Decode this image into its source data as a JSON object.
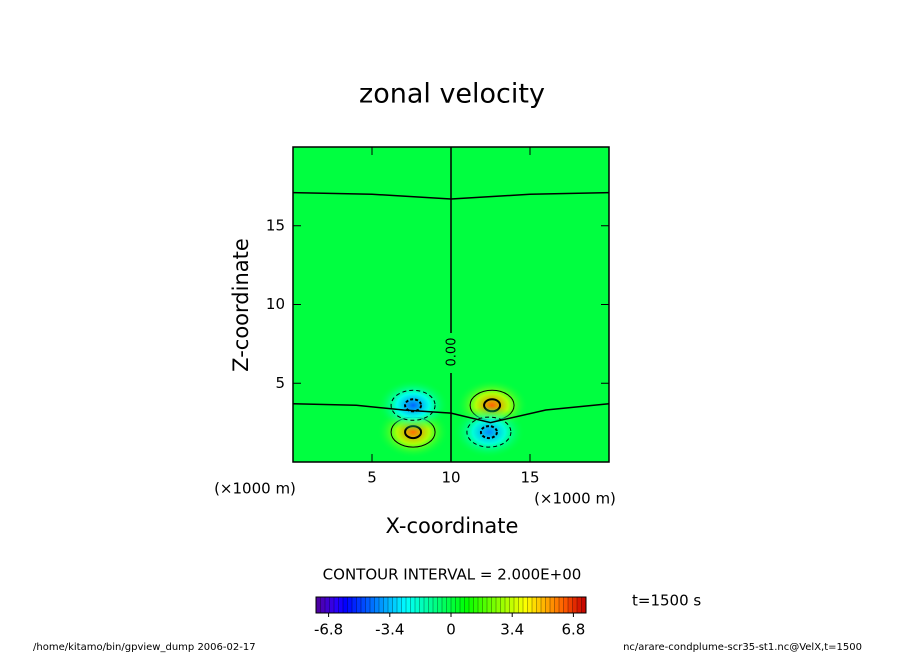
{
  "chart_data": {
    "type": "contour",
    "title": "zonal velocity",
    "x_label": "X-coordinate",
    "y_label": "Z-coordinate",
    "x_unit": "(×1000 m)",
    "y_unit": "(×1000 m)",
    "xlim": [
      0,
      20
    ],
    "ylim": [
      0,
      20
    ],
    "xticks": [
      5,
      10,
      15
    ],
    "yticks": [
      5,
      10,
      15
    ],
    "features": [
      {
        "x": 7.6,
        "z": 1.9,
        "value": 6.0
      },
      {
        "x": 7.6,
        "z": 3.6,
        "value": -4.5
      },
      {
        "x": 12.6,
        "z": 3.6,
        "value": 6.2
      },
      {
        "x": 12.4,
        "z": 1.9,
        "value": -4.0
      }
    ],
    "zero_contour": {
      "label": "0.00",
      "lines": [
        [
          [
            0,
            17.1
          ],
          [
            5,
            17.0
          ],
          [
            10,
            16.7
          ],
          [
            15,
            17.0
          ],
          [
            20,
            17.1
          ]
        ],
        [
          [
            0,
            3.7
          ],
          [
            4,
            3.6
          ],
          [
            7,
            3.3
          ],
          [
            10,
            3.1
          ],
          [
            12.5,
            2.5
          ],
          [
            16,
            3.3
          ],
          [
            20,
            3.7
          ]
        ],
        [
          [
            10,
            0
          ],
          [
            10,
            20
          ]
        ]
      ]
    },
    "contour_interval": "CONTOUR INTERVAL = 2.000E+00",
    "time_label": "t=1500 s",
    "colorbar": {
      "lim": [
        -7.5,
        7.5
      ],
      "ticks": [
        -6.8,
        -3.4,
        0,
        3.4,
        6.8
      ]
    },
    "footer_left": "/home/kitamo/bin/gpview_dump  2006-02-17",
    "footer_right": "nc/arare-condplume-scr35-st1.nc@VelX,t=1500"
  }
}
